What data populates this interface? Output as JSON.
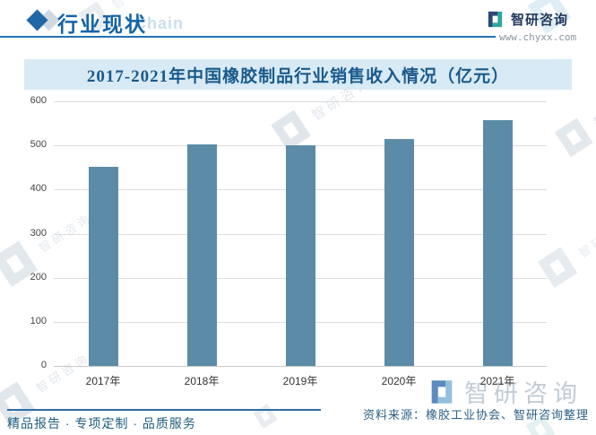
{
  "header": {
    "section_title": "行业现状",
    "section_subtitle": "Chain",
    "brand_name": "智研咨询",
    "website": "www.chyxx.com"
  },
  "chart_data": {
    "type": "bar",
    "title": "2017-2021年中国橡胶制品行业销售收入情况（亿元）",
    "categories": [
      "2017年",
      "2018年",
      "2019年",
      "2020年",
      "2021年"
    ],
    "values": [
      452,
      503,
      500,
      515,
      557
    ],
    "xlabel": "",
    "ylabel": "",
    "ylim": [
      0,
      600
    ],
    "yticks": [
      0,
      100,
      200,
      300,
      400,
      500,
      600
    ],
    "grid": true,
    "legend": "none",
    "bar_color": "#5b8ba6"
  },
  "footer": {
    "tagline": "精品报告 · 专项定制 · 品质服务",
    "source": "资料来源：橡胶工业协会、智研咨询整理"
  },
  "watermark": {
    "text": "智研咨询"
  },
  "icons": {
    "header_marker": "diamond-icon",
    "brand_logo": "zhiyan-logo-icon"
  },
  "colors": {
    "accent_blue": "#2273b4",
    "bar": "#5b8ba6",
    "banner_bg": "#d8eaf5",
    "banner_text": "#1a5a8c",
    "logo_navy": "#2b4a77",
    "logo_teal": "#2aa7a3",
    "watermark_gray": "#c3ced8"
  }
}
